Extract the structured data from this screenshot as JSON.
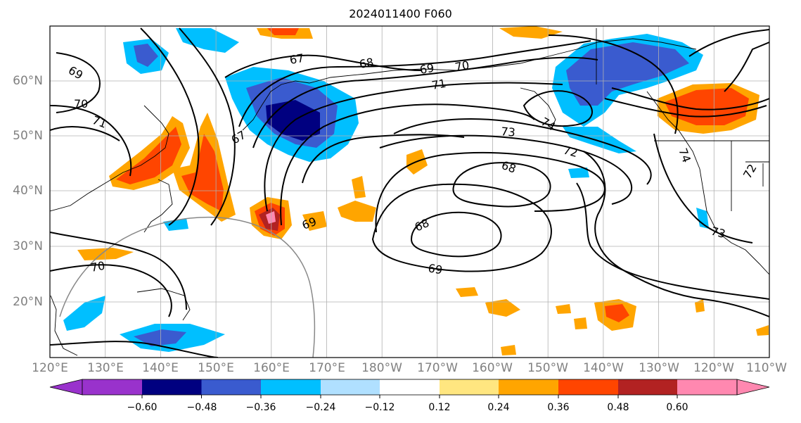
{
  "title": "2024011400 F060",
  "map": {
    "lon_labels": [
      "120°E",
      "130°E",
      "140°E",
      "150°E",
      "160°E",
      "170°E",
      "180°W",
      "170°W",
      "160°W",
      "150°W",
      "140°W",
      "130°W",
      "120°W",
      "110°W"
    ],
    "lat_labels": [
      "60°N",
      "50°N",
      "40°N",
      "30°N",
      "20°N"
    ],
    "contour_labels": [
      "69",
      "70",
      "71",
      "67",
      "68",
      "69",
      "70",
      "71",
      "67",
      "74",
      "73",
      "72",
      "68",
      "69",
      "68",
      "69",
      "70",
      "73",
      "74",
      "72"
    ]
  },
  "colorbar": {
    "tick_labels": [
      "−0.60",
      "−0.48",
      "−0.36",
      "−0.24",
      "−0.12",
      "0.12",
      "0.24",
      "0.36",
      "0.48",
      "0.60"
    ],
    "colors": [
      "#9932cc",
      "#000080",
      "#3a5bcf",
      "#00bfff",
      "#b0e0ff",
      "#ffffff",
      "#ffe680",
      "#ffa500",
      "#ff4500",
      "#b22222",
      "#ff88b0"
    ]
  }
}
